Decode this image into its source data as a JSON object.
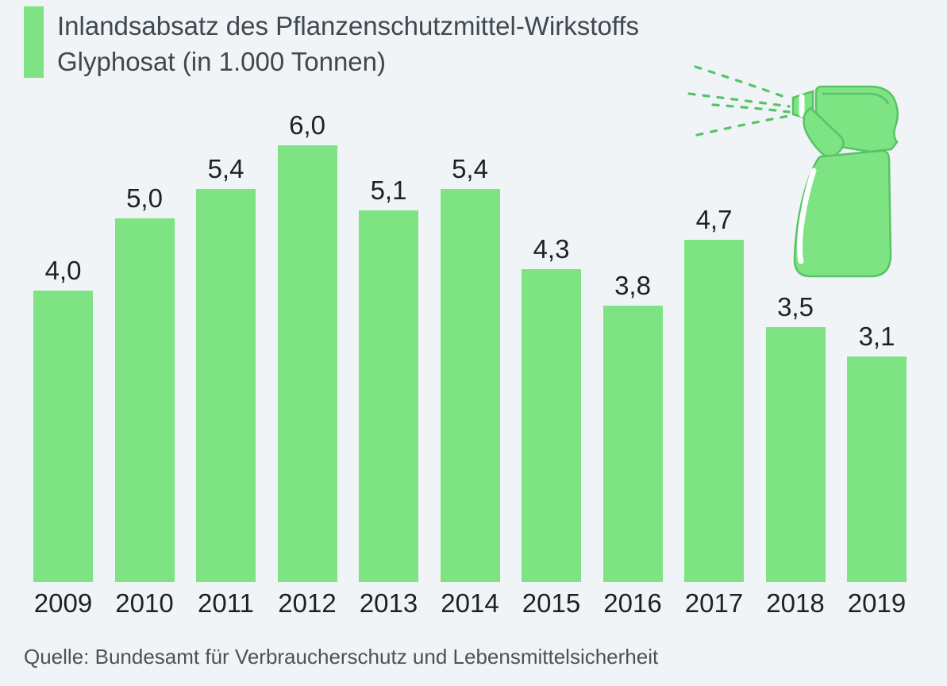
{
  "page": {
    "background_color": "#f0f4f7"
  },
  "header": {
    "title_line1": "Inlandsabsatz des Pflanzenschutzmittel-Wirkstoffs",
    "title_line2": "Glyphosat (in 1.000 Tonnen)",
    "accent_color": "#7ee382"
  },
  "chart_data": {
    "type": "bar",
    "title": "Inlandsabsatz des Pflanzenschutzmittel-Wirkstoffs Glyphosat (in 1.000 Tonnen)",
    "categories": [
      "2009",
      "2010",
      "2011",
      "2012",
      "2013",
      "2014",
      "2015",
      "2016",
      "2017",
      "2018",
      "2019"
    ],
    "values": [
      4.0,
      5.0,
      5.4,
      6.0,
      5.1,
      5.4,
      4.3,
      3.8,
      4.7,
      3.5,
      3.1
    ],
    "value_labels": [
      "4,0",
      "5,0",
      "5,4",
      "6,0",
      "5,1",
      "5,4",
      "4,3",
      "3,8",
      "4,7",
      "3,5",
      "3,1"
    ],
    "bar_color": "#7ee382",
    "label_color": "#1c2126",
    "xlabel": "",
    "ylabel": "",
    "ylim": [
      0,
      6.0
    ],
    "grid": false,
    "legend": null
  },
  "footer": {
    "source": "Quelle: Bundesamt für Verbraucherschutz und Lebensmittelsicherheit"
  },
  "illustration": {
    "name": "spray-bottle-icon",
    "fill_color": "#7ee382",
    "stroke_color": "#57c367"
  }
}
